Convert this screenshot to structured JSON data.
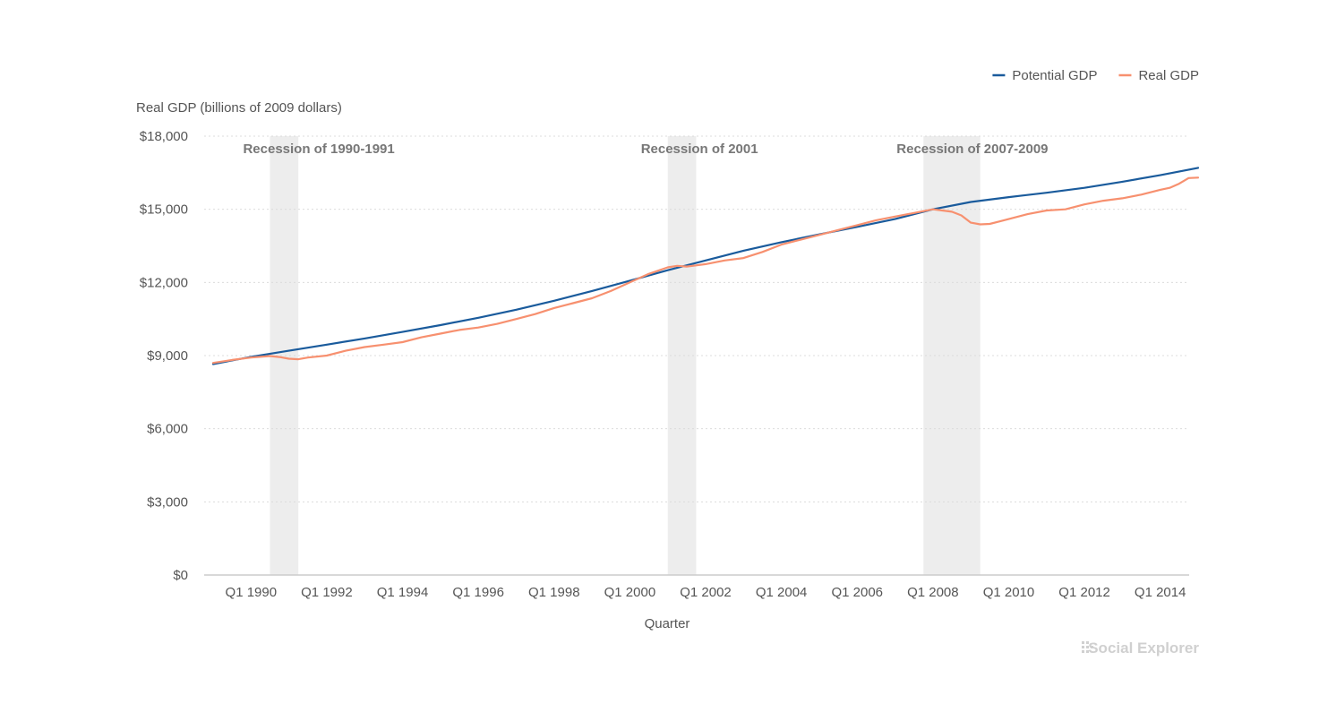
{
  "chart_data": {
    "type": "line",
    "ylabel": "Real GDP (billions of 2009 dollars)",
    "xlabel": "Quarter",
    "ylim": [
      0,
      18000
    ],
    "xlim": [
      1989.0,
      2015.0
    ],
    "y_ticks": [
      {
        "value": 0,
        "label": "$0"
      },
      {
        "value": 3000,
        "label": "$3,000"
      },
      {
        "value": 6000,
        "label": "$6,000"
      },
      {
        "value": 9000,
        "label": "$9,000"
      },
      {
        "value": 12000,
        "label": "$12,000"
      },
      {
        "value": 15000,
        "label": "$15,000"
      },
      {
        "value": 18000,
        "label": "$18,000"
      }
    ],
    "x_ticks": [
      {
        "value": 1990,
        "label": "Q1 1990"
      },
      {
        "value": 1992,
        "label": "Q1 1992"
      },
      {
        "value": 1994,
        "label": "Q1 1994"
      },
      {
        "value": 1996,
        "label": "Q1 1996"
      },
      {
        "value": 1998,
        "label": "Q1 1998"
      },
      {
        "value": 2000,
        "label": "Q1 2000"
      },
      {
        "value": 2002,
        "label": "Q1 2002"
      },
      {
        "value": 2004,
        "label": "Q1 2004"
      },
      {
        "value": 2006,
        "label": "Q1 2006"
      },
      {
        "value": 2008,
        "label": "Q1 2008"
      },
      {
        "value": 2010,
        "label": "Q1 2010"
      },
      {
        "value": 2012,
        "label": "Q1 2012"
      },
      {
        "value": 2014,
        "label": "Q1 2014"
      }
    ],
    "recessions": [
      {
        "label": "Recession of 1990-1991",
        "start": 1990.5,
        "end": 1991.25
      },
      {
        "label": "Recession of 2001",
        "start": 2001.0,
        "end": 2001.75
      },
      {
        "label": "Recession of 2007-2009",
        "start": 2007.75,
        "end": 2009.25
      }
    ],
    "legend_position": "top-right",
    "grid": true,
    "series": [
      {
        "name": "Potential GDP",
        "color": "#1a5b9c",
        "points": [
          [
            1989.0,
            8650
          ],
          [
            1990.0,
            8950
          ],
          [
            1991.0,
            9200
          ],
          [
            1992.0,
            9450
          ],
          [
            1993.0,
            9700
          ],
          [
            1994.0,
            9970
          ],
          [
            1995.0,
            10250
          ],
          [
            1996.0,
            10550
          ],
          [
            1997.0,
            10880
          ],
          [
            1998.0,
            11250
          ],
          [
            1999.0,
            11650
          ],
          [
            2000.0,
            12070
          ],
          [
            2001.0,
            12500
          ],
          [
            2002.0,
            12900
          ],
          [
            2003.0,
            13300
          ],
          [
            2004.0,
            13650
          ],
          [
            2005.0,
            13970
          ],
          [
            2006.0,
            14280
          ],
          [
            2007.0,
            14600
          ],
          [
            2008.0,
            15000
          ],
          [
            2009.0,
            15300
          ],
          [
            2010.0,
            15500
          ],
          [
            2011.0,
            15680
          ],
          [
            2012.0,
            15880
          ],
          [
            2013.0,
            16130
          ],
          [
            2014.0,
            16400
          ],
          [
            2015.0,
            16700
          ]
        ]
      },
      {
        "name": "Real GDP",
        "color": "#f7906f",
        "points": [
          [
            1989.0,
            8700
          ],
          [
            1989.5,
            8820
          ],
          [
            1990.0,
            8920
          ],
          [
            1990.5,
            8980
          ],
          [
            1990.75,
            8940
          ],
          [
            1991.0,
            8870
          ],
          [
            1991.25,
            8850
          ],
          [
            1991.5,
            8920
          ],
          [
            1992.0,
            9000
          ],
          [
            1992.5,
            9200
          ],
          [
            1993.0,
            9350
          ],
          [
            1993.5,
            9450
          ],
          [
            1994.0,
            9550
          ],
          [
            1994.5,
            9750
          ],
          [
            1995.0,
            9900
          ],
          [
            1995.5,
            10050
          ],
          [
            1996.0,
            10150
          ],
          [
            1996.5,
            10300
          ],
          [
            1997.0,
            10500
          ],
          [
            1997.5,
            10700
          ],
          [
            1998.0,
            10950
          ],
          [
            1998.5,
            11150
          ],
          [
            1999.0,
            11350
          ],
          [
            1999.5,
            11650
          ],
          [
            2000.0,
            12000
          ],
          [
            2000.5,
            12350
          ],
          [
            2001.0,
            12620
          ],
          [
            2001.25,
            12680
          ],
          [
            2001.5,
            12650
          ],
          [
            2001.75,
            12700
          ],
          [
            2002.0,
            12750
          ],
          [
            2002.5,
            12900
          ],
          [
            2003.0,
            13000
          ],
          [
            2003.5,
            13250
          ],
          [
            2004.0,
            13550
          ],
          [
            2004.5,
            13750
          ],
          [
            2005.0,
            13950
          ],
          [
            2005.5,
            14150
          ],
          [
            2006.0,
            14350
          ],
          [
            2006.5,
            14550
          ],
          [
            2007.0,
            14700
          ],
          [
            2007.5,
            14850
          ],
          [
            2008.0,
            15000
          ],
          [
            2008.25,
            14950
          ],
          [
            2008.5,
            14900
          ],
          [
            2008.75,
            14750
          ],
          [
            2009.0,
            14450
          ],
          [
            2009.25,
            14380
          ],
          [
            2009.5,
            14400
          ],
          [
            2009.75,
            14500
          ],
          [
            2010.0,
            14600
          ],
          [
            2010.5,
            14800
          ],
          [
            2011.0,
            14950
          ],
          [
            2011.5,
            15000
          ],
          [
            2012.0,
            15200
          ],
          [
            2012.5,
            15350
          ],
          [
            2013.0,
            15450
          ],
          [
            2013.5,
            15600
          ],
          [
            2014.0,
            15800
          ],
          [
            2014.25,
            15880
          ],
          [
            2014.5,
            16050
          ],
          [
            2014.75,
            16280
          ],
          [
            2015.0,
            16300
          ]
        ]
      }
    ]
  },
  "branding": {
    "name": "Social Explorer"
  }
}
